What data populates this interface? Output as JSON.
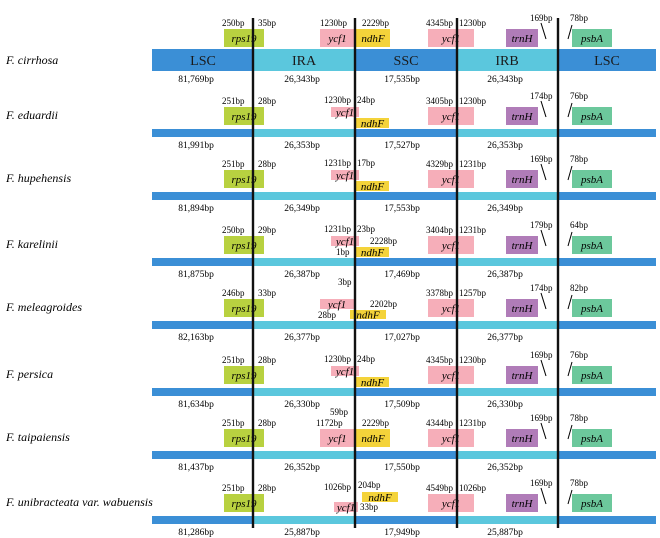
{
  "regions": [
    "LSC",
    "IRA",
    "SSC",
    "IRB",
    "LSC"
  ],
  "colors": {
    "lsc_bar": "#3b8fd6",
    "ir_bar": "#5bc7dd",
    "rps19": "#b8d140",
    "ycf1": "#f6aeb9",
    "ndhF": "#f4d33a",
    "trnH": "#b07cb8",
    "psbA": "#6cc89c"
  },
  "rows": [
    {
      "species": "F. cirrhosa",
      "lengths": [
        "81,769bp",
        "26,343bp",
        "17,535bp",
        "26,343bp"
      ],
      "rps19": "rps19",
      "rps19_l": "250bp",
      "rps19_r": "35bp",
      "ycf1a": "ycf1",
      "ycf1a_l": "1230bp",
      "ndhF": "ndhF",
      "ndhF_r": "2229bp",
      "ycf1b": "ycf1",
      "ycf1b_l": "4345bp",
      "ycf1b_r": "1230bp",
      "trnH": "trnH",
      "trnH_bp": "169bp",
      "psbA": "psbA",
      "psbA_bp": "78bp"
    },
    {
      "species": "F. eduardii",
      "lengths": [
        "81,991bp",
        "26,353bp",
        "17,527bp",
        "26,353bp"
      ],
      "rps19": "rps19",
      "rps19_l": "251bp",
      "rps19_r": "28bp",
      "ycf1a": "ycf1",
      "ycf1a_l": "1230bp",
      "ycf1a_r": "24bp",
      "ndhF": "ndhF",
      "ycf1b": "ycf1",
      "ycf1b_l": "3405bp",
      "ycf1b_r": "1230bp",
      "trnH": "trnH",
      "trnH_bp": "174bp",
      "psbA": "psbA",
      "psbA_bp": "76bp"
    },
    {
      "species": "F. hupehensis",
      "lengths": [
        "81,894bp",
        "26,349bp",
        "17,553bp",
        "26,349bp"
      ],
      "rps19": "rps19",
      "rps19_l": "251bp",
      "rps19_r": "28bp",
      "ycf1a": "ycf1",
      "ycf1a_l": "1231bp",
      "ycf1a_r": "17bp",
      "ndhF": "ndhF",
      "ycf1b": "ycf1",
      "ycf1b_l": "4329bp",
      "ycf1b_r": "1231bp",
      "trnH": "trnH",
      "trnH_bp": "169bp",
      "psbA": "psbA",
      "psbA_bp": "78bp"
    },
    {
      "species": "F. karelinii",
      "lengths": [
        "81,875bp",
        "26,387bp",
        "17,469bp",
        "26,387bp"
      ],
      "rps19": "rps19",
      "rps19_l": "250bp",
      "rps19_r": "29bp",
      "ycf1a": "ycf1",
      "ycf1a_l": "1231bp",
      "ycf1a_r": "23bp",
      "ndhF": "ndhF",
      "ndhF_l": "1bp",
      "ndhF_r": "2228bp",
      "ycf1b": "ycf1",
      "ycf1b_l": "3404bp",
      "ycf1b_r": "1231bp",
      "trnH": "trnH",
      "trnH_bp": "179bp",
      "psbA": "psbA",
      "psbA_bp": "64bp"
    },
    {
      "species": "F. meleagroides",
      "lengths": [
        "82,163bp",
        "26,377bp",
        "17,027bp",
        "26,377bp"
      ],
      "rps19": "rps19",
      "rps19_l": "246bp",
      "rps19_r": "33bp",
      "ycf1a": "ycf1",
      "ycf1a_top": "3bp",
      "ndhF": "ndhF",
      "ndhF_l": "28bp",
      "ndhF_r": "2202bp",
      "ycf1b": "ycf1",
      "ycf1b_l": "3378bp",
      "ycf1b_r": "1257bp",
      "trnH": "trnH",
      "trnH_bp": "174bp",
      "psbA": "psbA",
      "psbA_bp": "82bp"
    },
    {
      "species": "F. persica",
      "lengths": [
        "81,634bp",
        "26,330bp",
        "17,509bp",
        "26,330bp"
      ],
      "rps19": "rps19",
      "rps19_l": "251bp",
      "rps19_r": "28bp",
      "ycf1a": "ycf1",
      "ycf1a_l": "1230bp",
      "ycf1a_r": "24bp",
      "ndhF": "ndhF",
      "ycf1b": "ycf1",
      "ycf1b_l": "4345bp",
      "ycf1b_r": "1230bp",
      "trnH": "trnH",
      "trnH_bp": "169bp",
      "psbA": "psbA",
      "psbA_bp": "76bp"
    },
    {
      "species": "F. taipaiensis",
      "lengths": [
        "81,437bp",
        "26,352bp",
        "17,550bp",
        "26,352bp"
      ],
      "rps19": "rps19",
      "rps19_l": "251bp",
      "rps19_r": "28bp",
      "ycf1a": "ycf1",
      "ycf1a_l": "1172bp",
      "ycf1a_top": "59bp",
      "ndhF": "ndhF",
      "ndhF_r": "2229bp",
      "ycf1b": "ycf1",
      "ycf1b_l": "4344bp",
      "ycf1b_r": "1231bp",
      "trnH": "trnH",
      "trnH_bp": "169bp",
      "psbA": "psbA",
      "psbA_bp": "78bp"
    },
    {
      "species": "F. unibracteata var. wabuensis",
      "lengths": [
        "81,286bp",
        "25,887bp",
        "17,949bp",
        "25,887bp"
      ],
      "rps19": "rps19",
      "rps19_l": "251bp",
      "rps19_r": "28bp",
      "ycf1a": "ycf1",
      "ycf1a_l": "1026bp",
      "ycf1a_r": "33bp",
      "ndhF": "ndhF",
      "ndhF_top": "204bp",
      "ycf1b": "ycf1",
      "ycf1b_l": "4549bp",
      "ycf1b_r": "1026bp",
      "trnH": "trnH",
      "trnH_bp": "169bp",
      "psbA": "psbA",
      "psbA_bp": "78bp"
    }
  ]
}
